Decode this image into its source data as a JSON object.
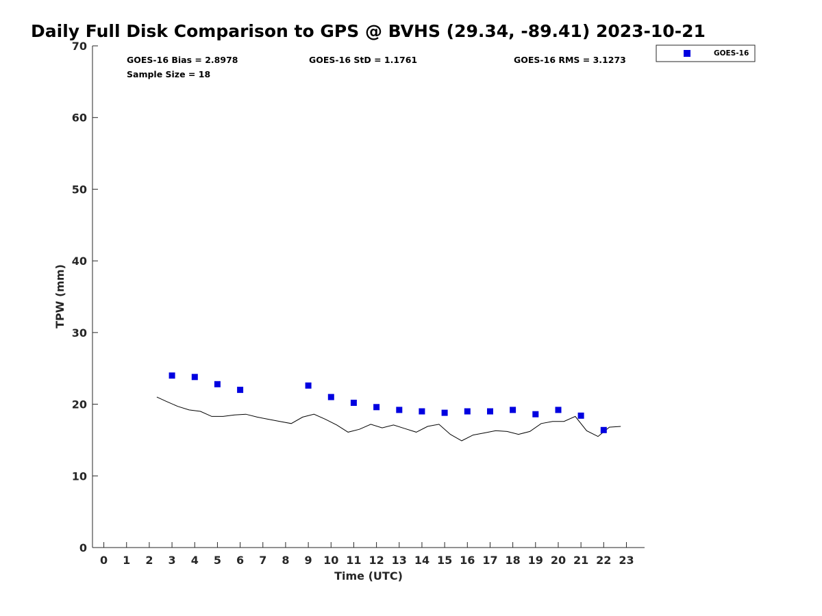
{
  "chart_data": {
    "type": "scatter",
    "title": "Daily Full Disk Comparison to GPS @ BVHS (29.34, -89.41) 2023-10-21",
    "xlabel": "Time (UTC)",
    "ylabel": "TPW (mm)",
    "xlim": [
      -0.5,
      23.8
    ],
    "ylim": [
      0,
      70
    ],
    "x_ticks": [
      "0",
      "1",
      "2",
      "3",
      "4",
      "5",
      "6",
      "7",
      "8",
      "9",
      "10",
      "11",
      "12",
      "13",
      "14",
      "15",
      "16",
      "17",
      "18",
      "19",
      "20",
      "21",
      "22",
      "23"
    ],
    "y_ticks": [
      "0",
      "10",
      "20",
      "30",
      "40",
      "50",
      "60",
      "70"
    ],
    "grid": false,
    "legend_position": "top-right, outside plot",
    "stats": {
      "bias": "GOES-16 Bias = 2.8978",
      "std": "GOES-16 StD = 1.1761",
      "rms": "GOES-16 RMS = 3.1273",
      "sample": "Sample Size = 18"
    },
    "series": [
      {
        "name": "GOES-16",
        "style": "square-markers",
        "color": "#0000e0",
        "x": [
          3,
          4,
          5,
          6,
          9,
          10,
          11,
          12,
          13,
          14,
          15,
          16,
          17,
          18,
          19,
          20,
          21,
          22
        ],
        "y": [
          24.0,
          23.8,
          22.8,
          22.0,
          22.6,
          21.0,
          20.2,
          19.6,
          19.2,
          19.0,
          18.8,
          19.0,
          19.0,
          19.2,
          18.6,
          19.2,
          18.4,
          16.4
        ]
      },
      {
        "style": "line",
        "color": "#000000",
        "x": [
          2.33,
          2.75,
          3.25,
          3.75,
          4.25,
          4.75,
          5.25,
          5.75,
          6.25,
          6.75,
          7.25,
          7.75,
          8.25,
          8.75,
          9.25,
          9.75,
          10.25,
          10.75,
          11.25,
          11.75,
          12.25,
          12.75,
          13.25,
          13.75,
          14.25,
          14.75,
          15.25,
          15.75,
          16.25,
          16.75,
          17.25,
          17.75,
          18.25,
          18.75,
          19.25,
          19.75,
          20.25,
          20.75,
          21.25,
          21.75,
          22.25,
          22.75
        ],
        "y": [
          21.0,
          20.4,
          19.7,
          19.2,
          19.0,
          18.3,
          18.3,
          18.5,
          18.6,
          18.2,
          17.9,
          17.6,
          17.3,
          18.2,
          18.6,
          17.9,
          17.1,
          16.1,
          16.5,
          17.2,
          16.7,
          17.1,
          16.6,
          16.1,
          16.9,
          17.2,
          15.8,
          14.9,
          15.7,
          16.0,
          16.3,
          16.2,
          15.8,
          16.2,
          17.3,
          17.6,
          17.6,
          18.3,
          16.3,
          15.5,
          16.8,
          16.9
        ]
      }
    ]
  }
}
